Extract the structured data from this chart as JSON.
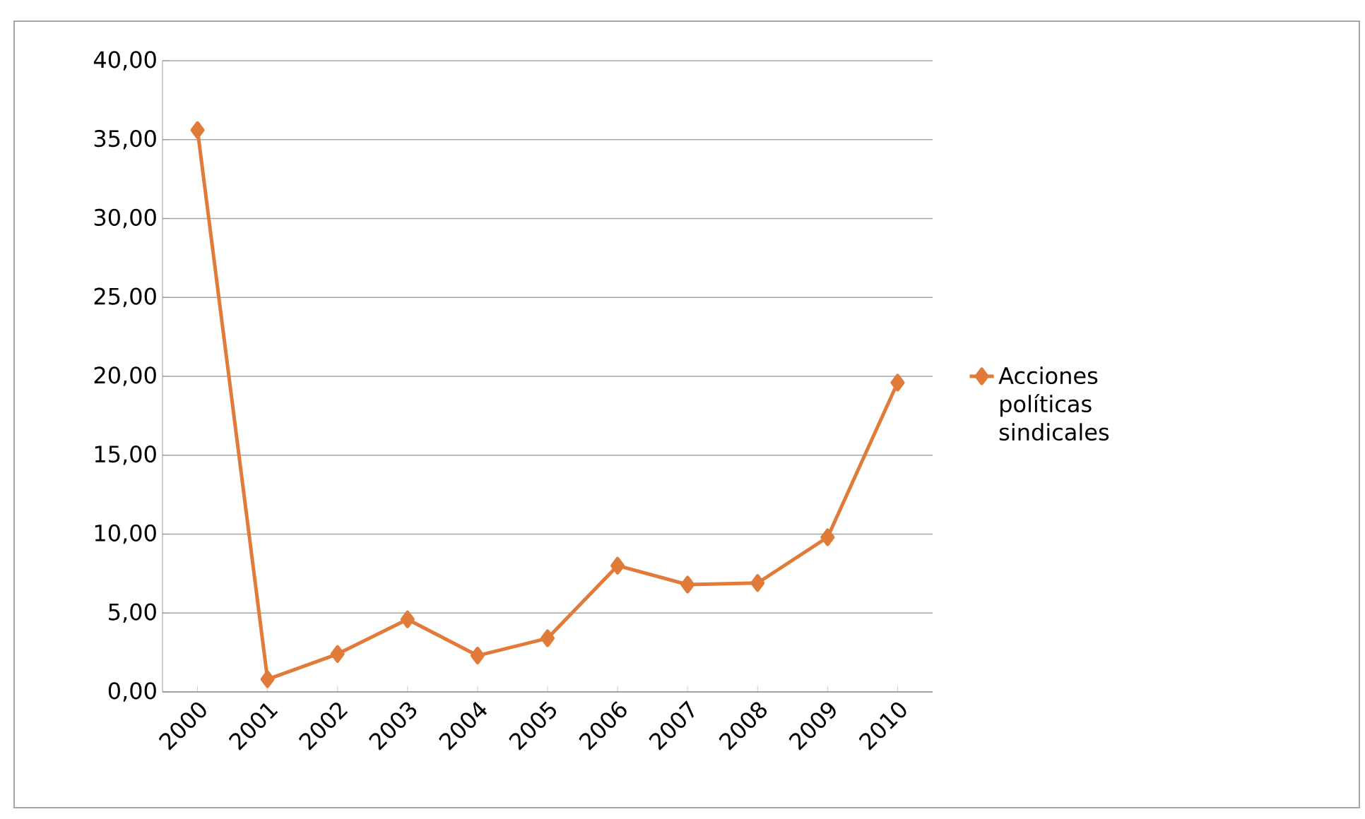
{
  "chart_data": {
    "type": "line",
    "categories": [
      "2000",
      "2001",
      "2002",
      "2003",
      "2004",
      "2005",
      "2006",
      "2007",
      "2008",
      "2009",
      "2010"
    ],
    "series": [
      {
        "name": "Acciones políticas sindicales",
        "color": "#e07b39",
        "values": [
          35.6,
          0.8,
          2.4,
          4.6,
          2.3,
          3.4,
          8.0,
          6.8,
          6.9,
          9.8,
          19.6
        ]
      }
    ],
    "ylim": [
      0,
      40
    ],
    "yticks": [
      {
        "value": 0,
        "label": "0,00"
      },
      {
        "value": 5,
        "label": "5,00"
      },
      {
        "value": 10,
        "label": "10,00"
      },
      {
        "value": 15,
        "label": "15,00"
      },
      {
        "value": 20,
        "label": "20,00"
      },
      {
        "value": 25,
        "label": "25,00"
      },
      {
        "value": 30,
        "label": "30,00"
      },
      {
        "value": 35,
        "label": "35,00"
      },
      {
        "value": 40,
        "label": "40,00"
      }
    ],
    "grid": "y",
    "legend": "right",
    "marker": "diamond",
    "line_style": "solid"
  }
}
